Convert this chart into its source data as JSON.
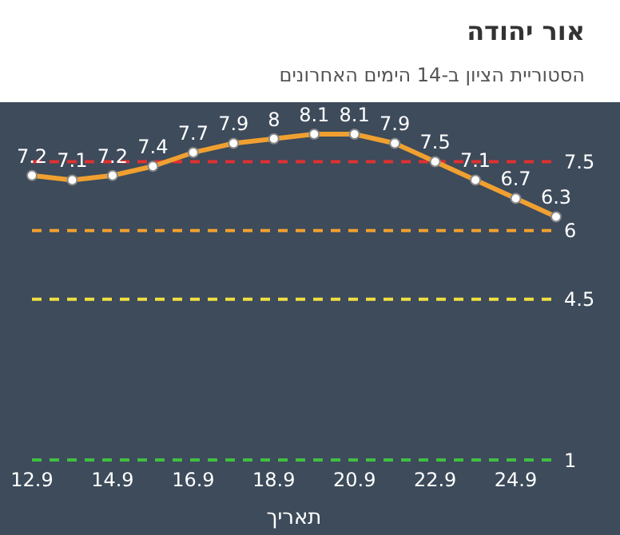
{
  "chart_data": {
    "type": "line",
    "title": "אור יהודה",
    "subtitle": "הסטוריית הציון ב-14 הימים האחרונים",
    "xlabel": "תאריך",
    "categories": [
      "12.9",
      null,
      "14.9",
      null,
      "16.9",
      null,
      "18.9",
      null,
      "20.9",
      null,
      "22.9",
      null,
      "24.9",
      null
    ],
    "series": [
      {
        "color": "#f0a030",
        "values": [
          7.2,
          7.1,
          7.2,
          7.4,
          7.7,
          7.9,
          8,
          8.1,
          8.1,
          7.9,
          7.5,
          7.1,
          6.7,
          6.3
        ]
      }
    ],
    "tick_labels": "x",
    "data_labels": true,
    "marker": "circle",
    "line_style": "solid",
    "grid": false,
    "legend": false,
    "ref_lines": [
      {
        "axis": "y",
        "value": 7.5,
        "label": "7.5",
        "color": "#e03030",
        "line_style": "dashed"
      },
      {
        "axis": "y",
        "value": 6,
        "label": "6",
        "color": "#f0a030",
        "line_style": "dashed"
      },
      {
        "axis": "y",
        "value": 4.5,
        "label": "4.5",
        "color": "#f0e040",
        "line_style": "dashed"
      },
      {
        "axis": "y",
        "value": 1,
        "label": "1",
        "color": "#40c040",
        "line_style": "dashed"
      }
    ]
  }
}
